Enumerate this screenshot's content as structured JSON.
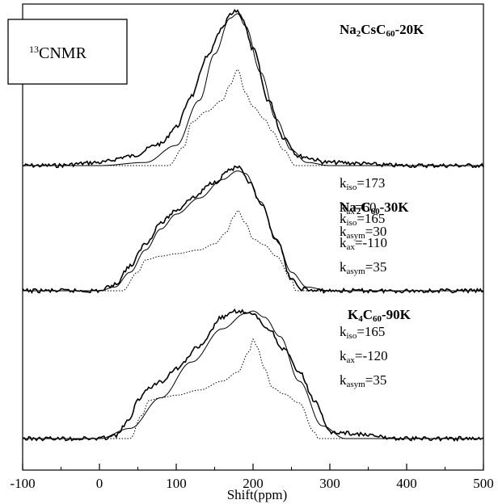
{
  "chart_data": {
    "type": "line",
    "xlabel": "Shift(ppm)",
    "ylabel": "",
    "xlim": [
      -100,
      500
    ],
    "xticks": [
      "-100",
      "0",
      "100",
      "200",
      "300",
      "400",
      "500"
    ],
    "grid": false,
    "legend_box": {
      "sup": "13",
      "text": "CNMR"
    },
    "panels": [
      {
        "name": {
          "parts": [
            [
              "Na",
              "n"
            ],
            [
              "2",
              "sub"
            ],
            [
              "CsC",
              "n"
            ],
            [
              "60",
              "sub"
            ],
            [
              "-20K",
              "n"
            ]
          ]
        },
        "params": [
          {
            "k": "k",
            "sub": "iso",
            "val": "=173"
          },
          {
            "k": "k",
            "sub": "ax",
            "val": "=60"
          },
          {
            "k": "k",
            "sub": "asym",
            "val": "=30"
          }
        ],
        "experimental": {
          "x": [
            -100,
            -60,
            0,
            40,
            80,
            100,
            120,
            140,
            160,
            170,
            180,
            185,
            200,
            220,
            240,
            260,
            300,
            400,
            500
          ],
          "y": [
            0,
            0,
            0.02,
            0.06,
            0.14,
            0.25,
            0.45,
            0.7,
            0.88,
            0.97,
            1.0,
            0.96,
            0.75,
            0.42,
            0.18,
            0.06,
            0.02,
            0,
            0
          ]
        },
        "fit": {
          "x": [
            -100,
            0,
            60,
            100,
            130,
            150,
            170,
            180,
            190,
            210,
            230,
            250,
            270,
            300,
            400,
            500
          ],
          "y": [
            0,
            0,
            0.02,
            0.13,
            0.42,
            0.72,
            0.95,
            0.98,
            0.9,
            0.6,
            0.3,
            0.1,
            0.02,
            0,
            0,
            0
          ]
        },
        "static": {
          "x": [
            -100,
            90,
            110,
            120,
            140,
            160,
            170,
            180,
            190,
            200,
            215,
            225,
            240,
            255,
            270,
            500
          ],
          "y": [
            0,
            0,
            0.12,
            0.28,
            0.35,
            0.42,
            0.52,
            0.62,
            0.47,
            0.38,
            0.3,
            0.22,
            0.1,
            0,
            0,
            0
          ]
        }
      },
      {
        "name": {
          "parts": [
            [
              "Na",
              "n"
            ],
            [
              "2",
              "sub"
            ],
            [
              "C",
              "n"
            ],
            [
              "60",
              "sub"
            ],
            [
              "-30K",
              "n"
            ]
          ]
        },
        "params": [
          {
            "k": "k",
            "sub": "iso",
            "val": "=165"
          },
          {
            "k": "k",
            "sub": "ax",
            "val": "=-110"
          },
          {
            "k": "k",
            "sub": "asym",
            "val": "=35"
          }
        ],
        "experimental": {
          "x": [
            -100,
            0,
            20,
            40,
            60,
            80,
            100,
            120,
            150,
            170,
            180,
            195,
            210,
            230,
            250,
            260,
            280,
            400,
            500
          ],
          "y": [
            0,
            0,
            0.05,
            0.2,
            0.38,
            0.55,
            0.65,
            0.75,
            0.88,
            0.98,
            1.0,
            0.88,
            0.7,
            0.42,
            0.1,
            0.02,
            0,
            0,
            0
          ]
        },
        "fit": {
          "x": [
            -100,
            0,
            20,
            40,
            60,
            80,
            100,
            130,
            160,
            180,
            190,
            210,
            230,
            250,
            270,
            300,
            500
          ],
          "y": [
            0,
            0,
            0.03,
            0.15,
            0.33,
            0.5,
            0.62,
            0.75,
            0.9,
            0.97,
            0.95,
            0.72,
            0.42,
            0.15,
            0.03,
            0,
            0
          ]
        },
        "static": {
          "x": [
            -100,
            30,
            50,
            60,
            80,
            100,
            130,
            150,
            165,
            175,
            180,
            190,
            200,
            215,
            230,
            250,
            255,
            500
          ],
          "y": [
            0,
            0,
            0.15,
            0.25,
            0.28,
            0.3,
            0.33,
            0.38,
            0.47,
            0.6,
            0.65,
            0.55,
            0.42,
            0.37,
            0.28,
            0.1,
            0,
            0
          ]
        }
      },
      {
        "name": {
          "parts": [
            [
              "K",
              "n"
            ],
            [
              "4",
              "sub"
            ],
            [
              "C",
              "n"
            ],
            [
              "60",
              "sub"
            ],
            [
              "-90K",
              "n"
            ]
          ]
        },
        "params": [
          {
            "k": "k",
            "sub": "iso",
            "val": "=165"
          },
          {
            "k": "k",
            "sub": "ax",
            "val": "=-120"
          },
          {
            "k": "k",
            "sub": "asym",
            "val": "=35"
          }
        ],
        "experimental": {
          "x": [
            -100,
            0,
            20,
            40,
            50,
            60,
            80,
            100,
            130,
            160,
            180,
            200,
            220,
            240,
            260,
            280,
            300,
            400,
            500
          ],
          "y": [
            0,
            0,
            0.02,
            0.15,
            0.3,
            0.38,
            0.45,
            0.55,
            0.72,
            0.95,
            1.0,
            0.97,
            0.86,
            0.7,
            0.52,
            0.3,
            0.05,
            0,
            0
          ]
        },
        "fit": {
          "x": [
            -100,
            0,
            40,
            80,
            120,
            160,
            190,
            200,
            215,
            235,
            260,
            290,
            320,
            500
          ],
          "y": [
            0,
            0,
            0.08,
            0.32,
            0.6,
            0.86,
            0.98,
            1.0,
            0.95,
            0.8,
            0.45,
            0.1,
            0,
            0
          ]
        },
        "static": {
          "x": [
            -100,
            40,
            55,
            65,
            80,
            100,
            130,
            160,
            180,
            195,
            200,
            205,
            215,
            225,
            240,
            260,
            280,
            285,
            500
          ],
          "y": [
            0,
            0,
            0.18,
            0.3,
            0.32,
            0.34,
            0.38,
            0.45,
            0.52,
            0.68,
            0.78,
            0.72,
            0.55,
            0.4,
            0.35,
            0.28,
            0.05,
            0,
            0
          ]
        }
      }
    ]
  }
}
